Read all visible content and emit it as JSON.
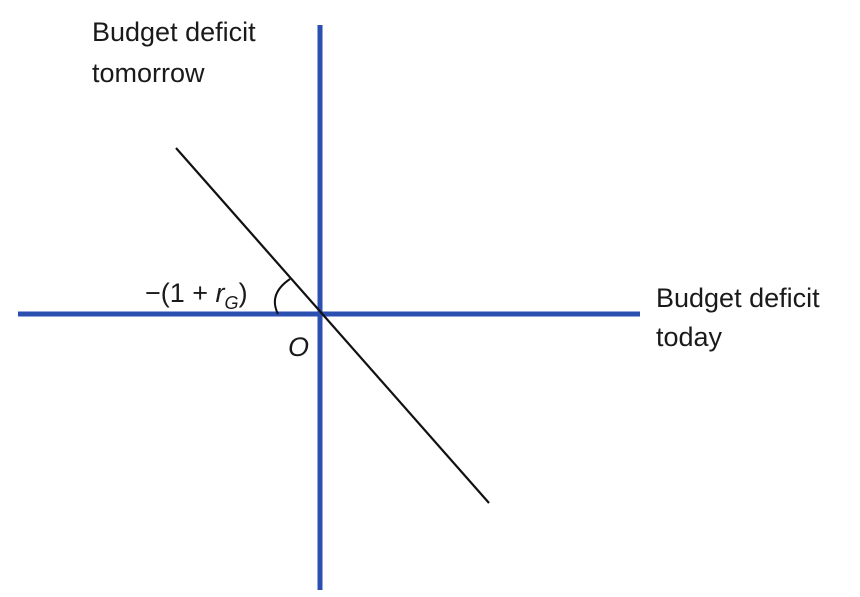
{
  "y_axis": {
    "label_line1": "Budget deficit",
    "label_line2": "tomorrow"
  },
  "x_axis": {
    "label_line1": "Budget deficit",
    "label_line2": "today"
  },
  "origin_label": "O",
  "slope_label": {
    "prefix": "−(1 + ",
    "variable": "r",
    "subscript": "G",
    "suffix": ")"
  },
  "colors": {
    "axis": "#2a4fb0",
    "line": "#111111"
  }
}
